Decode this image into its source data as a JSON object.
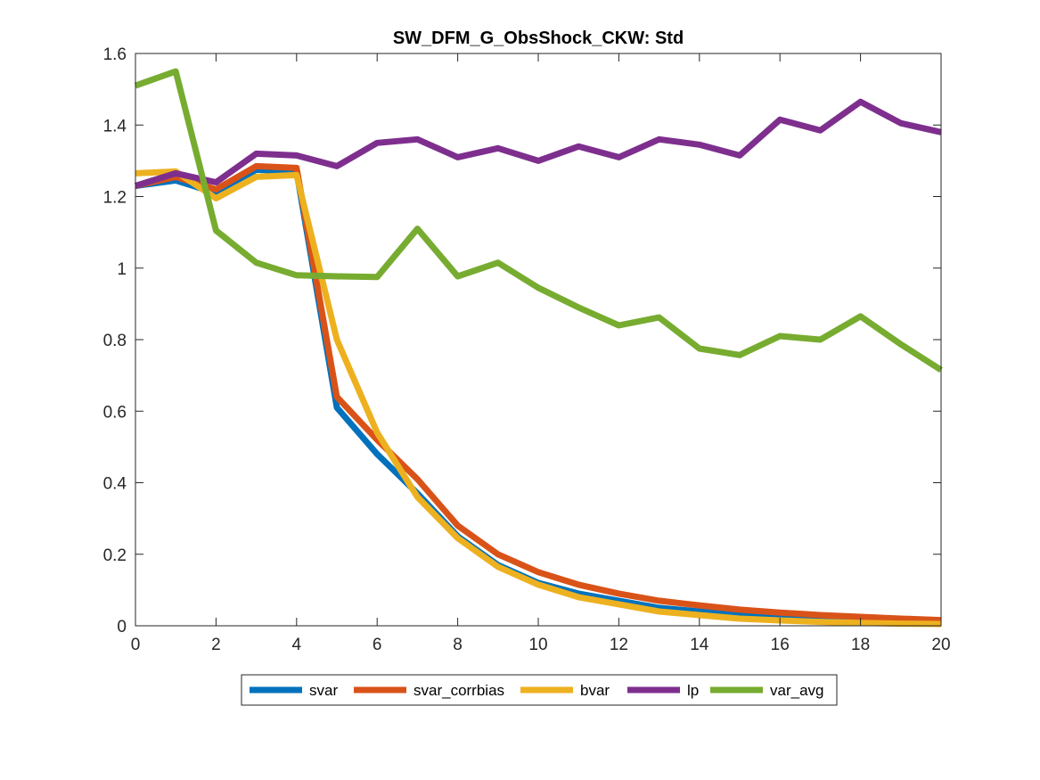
{
  "chart_data": {
    "type": "line",
    "title": "SW_DFM_G_ObsShock_CKW: Std",
    "xlabel": "",
    "ylabel": "",
    "xlim": [
      0,
      20
    ],
    "ylim": [
      0,
      1.6
    ],
    "x_ticks": [
      0,
      2,
      4,
      6,
      8,
      10,
      12,
      14,
      16,
      18,
      20
    ],
    "y_ticks": [
      0,
      0.2,
      0.4,
      0.6,
      0.8,
      1,
      1.2,
      1.4,
      1.6
    ],
    "x_tick_labels": [
      "0",
      "2",
      "4",
      "6",
      "8",
      "10",
      "12",
      "14",
      "16",
      "18",
      "20"
    ],
    "y_tick_labels": [
      "0",
      "0.2",
      "0.4",
      "0.6",
      "0.8",
      "1",
      "1.2",
      "1.4",
      "1.6"
    ],
    "grid": false,
    "legend_position": "bottom-outside",
    "x": [
      0,
      1,
      2,
      3,
      4,
      5,
      6,
      7,
      8,
      9,
      10,
      11,
      12,
      13,
      14,
      15,
      16,
      17,
      18,
      19,
      20
    ],
    "series": [
      {
        "name": "svar",
        "color": "#0072BD",
        "values": [
          1.23,
          1.245,
          1.21,
          1.275,
          1.27,
          0.61,
          0.48,
          0.37,
          0.25,
          0.17,
          0.12,
          0.09,
          0.07,
          0.05,
          0.04,
          0.03,
          0.025,
          0.02,
          0.015,
          0.01,
          0.008
        ]
      },
      {
        "name": "svar_corrbias",
        "color": "#D95319",
        "values": [
          1.23,
          1.255,
          1.22,
          1.285,
          1.28,
          0.64,
          0.52,
          0.41,
          0.28,
          0.2,
          0.15,
          0.115,
          0.09,
          0.07,
          0.057,
          0.045,
          0.037,
          0.03,
          0.025,
          0.02,
          0.016
        ]
      },
      {
        "name": "bvar",
        "color": "#EDB120",
        "values": [
          1.265,
          1.27,
          1.195,
          1.255,
          1.26,
          0.8,
          0.54,
          0.36,
          0.245,
          0.165,
          0.115,
          0.08,
          0.06,
          0.04,
          0.03,
          0.02,
          0.015,
          0.011,
          0.008,
          0.006,
          0.005
        ]
      },
      {
        "name": "lp",
        "color": "#7E2F8E",
        "values": [
          1.23,
          1.265,
          1.24,
          1.32,
          1.315,
          1.285,
          1.35,
          1.36,
          1.31,
          1.335,
          1.3,
          1.34,
          1.31,
          1.36,
          1.345,
          1.315,
          1.415,
          1.385,
          1.465,
          1.405,
          1.38
        ]
      },
      {
        "name": "var_avg",
        "color": "#77AC30",
        "values": [
          1.51,
          1.55,
          1.105,
          1.015,
          0.98,
          0.977,
          0.975,
          1.11,
          0.977,
          1.015,
          0.945,
          0.89,
          0.84,
          0.862,
          0.775,
          0.757,
          0.81,
          0.8,
          0.865,
          0.787,
          0.715
        ]
      }
    ]
  }
}
